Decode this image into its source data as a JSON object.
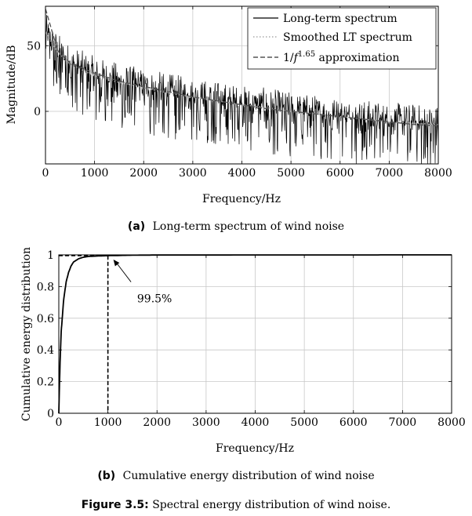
{
  "figure_caption": {
    "label": "Figure 3.5:",
    "text": "Spectral energy distribution of wind noise."
  },
  "chart_data": [
    {
      "type": "line",
      "caption_label": "(a)",
      "caption": "Long-term spectrum of wind noise",
      "xlabel": "Frequency/Hz",
      "ylabel": "Magnitude/dB",
      "xlim": [
        0,
        8000
      ],
      "ylim": [
        -40,
        80
      ],
      "xticks": [
        0,
        1000,
        2000,
        3000,
        4000,
        5000,
        6000,
        7000,
        8000
      ],
      "yticks": [
        0,
        50
      ],
      "grid": true,
      "legend_position": "top-right",
      "series": [
        {
          "name": "Long-term spectrum",
          "style": "solid",
          "color": "#000000",
          "x": [
            0,
            250,
            500,
            1000,
            1500,
            2000,
            2500,
            3000,
            3500,
            4000,
            4500,
            5000,
            5500,
            6000,
            6500,
            7000,
            7500,
            8000
          ],
          "values": [
            60,
            45,
            36,
            27,
            22,
            18,
            14,
            11,
            8,
            5,
            3,
            0,
            -2,
            -4,
            -6,
            -8,
            -9,
            -10
          ],
          "fluctuation_db": [
            -35,
            15
          ]
        },
        {
          "name": "Smoothed LT spectrum",
          "style": "dotted",
          "color": "#aaaaaa",
          "x": [
            0,
            250,
            500,
            1000,
            1500,
            2000,
            2500,
            3000,
            3500,
            4000,
            4500,
            5000,
            5500,
            6000,
            6500,
            7000,
            7500,
            8000
          ],
          "values": [
            60,
            45,
            36,
            27,
            22,
            18,
            14,
            11,
            8,
            5,
            3,
            0,
            -2,
            -4,
            -6,
            -8,
            -9,
            -10
          ]
        },
        {
          "name": "1/f^1.65 approximation",
          "name_prefix": "1/",
          "name_base": "f",
          "name_exp": "1.65",
          "name_suffix": " approximation",
          "style": "dashed",
          "color": "#555555",
          "x": [
            0,
            250,
            500,
            1000,
            1500,
            2000,
            2500,
            3000,
            3500,
            4000,
            4500,
            5000,
            5500,
            6000,
            6500,
            7000,
            7500,
            8000
          ],
          "values": [
            78,
            46,
            37,
            29,
            23,
            19,
            15,
            11,
            8,
            5,
            2,
            0,
            -2,
            -4,
            -6,
            -8,
            -10,
            -11
          ]
        }
      ]
    },
    {
      "type": "line",
      "caption_label": "(b)",
      "caption": "Cumulative energy distribution of wind noise",
      "xlabel": "Frequency/Hz",
      "ylabel": "Cumulative energy distribution",
      "xlim": [
        0,
        8000
      ],
      "ylim": [
        0,
        1
      ],
      "xticks": [
        0,
        1000,
        2000,
        3000,
        4000,
        5000,
        6000,
        7000,
        8000
      ],
      "yticks": [
        0,
        0.2,
        0.4,
        0.6,
        0.8,
        1
      ],
      "ytick_labels": [
        "0",
        "0.2",
        "0.4",
        "0.6",
        "0.8",
        "1"
      ],
      "grid": true,
      "series": [
        {
          "style": "solid",
          "color": "#000000",
          "x": [
            0,
            25,
            50,
            100,
            150,
            200,
            250,
            300,
            400,
            500,
            600,
            800,
            1000,
            1500,
            2000,
            8000
          ],
          "values": [
            0,
            0.32,
            0.52,
            0.72,
            0.83,
            0.89,
            0.93,
            0.955,
            0.975,
            0.985,
            0.99,
            0.993,
            0.995,
            0.998,
            0.999,
            1.0
          ]
        }
      ],
      "marker_lines": {
        "x": 1000,
        "y": 0.995
      },
      "annotation": {
        "text": "99.5%",
        "x": 1000,
        "y": 0.995,
        "text_x": 1950,
        "text_y": 0.72
      }
    }
  ]
}
